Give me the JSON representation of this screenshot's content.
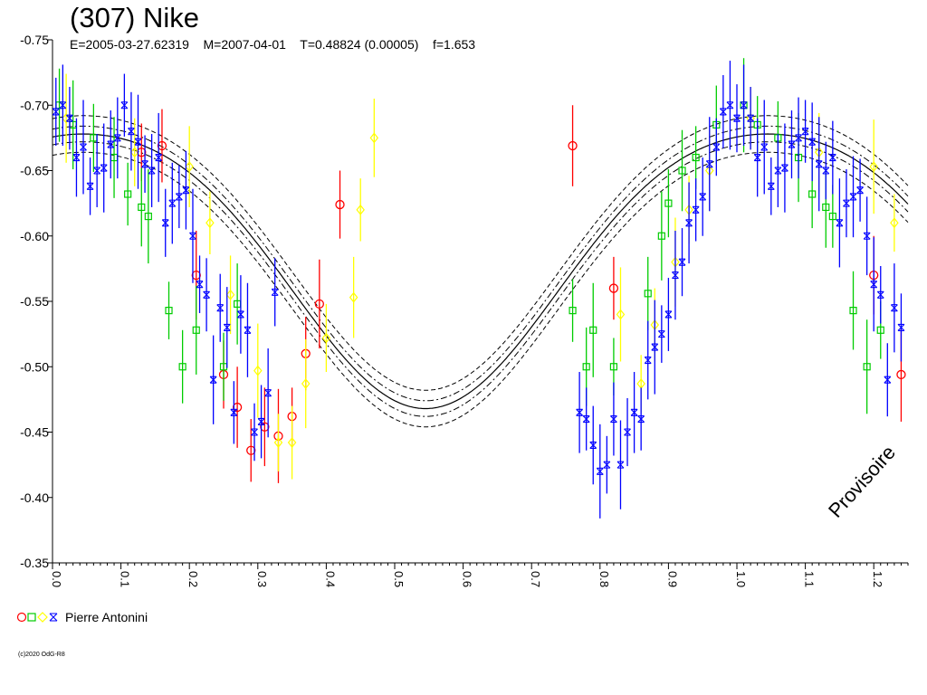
{
  "header": {
    "title": "(307) Nike",
    "subtitle": "E=2005-03-27.62319    M=2007-04-01    T=0.48824 (0.00005)    f=1.653"
  },
  "legend": {
    "label": "Pierre Antonini"
  },
  "footer": {
    "copyright": "(c)2020 OdG-R8"
  },
  "watermark": "Provisoire",
  "colors": {
    "red": "#ff0000",
    "green": "#00cc00",
    "yellow": "#ffff00",
    "blue": "#0000ff",
    "curve": "#000000"
  },
  "chart_data": {
    "type": "scatter",
    "xlim": [
      0,
      1.25
    ],
    "ylim": [
      -0.75,
      -0.35
    ],
    "y_ticks": [
      "-0.75",
      "-0.70",
      "-0.65",
      "-0.60",
      "-0.55",
      "-0.50",
      "-0.45",
      "-0.40",
      "-0.35"
    ],
    "x_ticks": [
      "0.0",
      "0.1",
      "0.2",
      "0.3",
      "0.4",
      "0.5",
      "0.6",
      "0.7",
      "0.8",
      "0.9",
      "1.0",
      "1.1",
      "1.2"
    ],
    "fit": {
      "mean": -0.585,
      "amp": 0.105,
      "peak_phase": 0.045,
      "harm2": 0.012,
      "band_inner": 0.006,
      "band_outer": 0.014
    },
    "series": [
      {
        "name": "Pierre Antonini",
        "color": "red",
        "marker": "circle",
        "points": [
          [
            0.13,
            -0.664
          ],
          [
            0.16,
            -0.669
          ],
          [
            0.21,
            -0.57
          ],
          [
            0.25,
            -0.494
          ],
          [
            0.27,
            -0.469
          ],
          [
            0.29,
            -0.436
          ],
          [
            0.31,
            -0.454
          ],
          [
            0.33,
            -0.447
          ],
          [
            0.35,
            -0.462
          ],
          [
            0.37,
            -0.51
          ],
          [
            0.39,
            -0.548
          ],
          [
            0.42,
            -0.624
          ],
          [
            0.76,
            -0.669
          ],
          [
            0.82,
            -0.56
          ],
          [
            1.2,
            -0.57
          ],
          [
            1.24,
            -0.494
          ]
        ]
      },
      {
        "name": "Pierre Antonini",
        "color": "green",
        "marker": "square",
        "points": [
          [
            0.01,
            -0.7
          ],
          [
            0.03,
            -0.685
          ],
          [
            0.06,
            -0.675
          ],
          [
            0.09,
            -0.66
          ],
          [
            0.11,
            -0.632
          ],
          [
            0.13,
            -0.622
          ],
          [
            0.14,
            -0.615
          ],
          [
            0.17,
            -0.543
          ],
          [
            0.19,
            -0.5
          ],
          [
            0.21,
            -0.528
          ],
          [
            0.25,
            -0.5
          ],
          [
            0.27,
            -0.548
          ],
          [
            0.76,
            -0.543
          ],
          [
            0.78,
            -0.5
          ],
          [
            0.79,
            -0.528
          ],
          [
            0.82,
            -0.5
          ],
          [
            0.87,
            -0.556
          ],
          [
            0.89,
            -0.6
          ],
          [
            0.9,
            -0.625
          ],
          [
            0.92,
            -0.65
          ],
          [
            0.94,
            -0.66
          ],
          [
            0.97,
            -0.685
          ],
          [
            1.01,
            -0.7
          ],
          [
            1.03,
            -0.685
          ],
          [
            1.06,
            -0.675
          ],
          [
            1.09,
            -0.66
          ],
          [
            1.11,
            -0.632
          ],
          [
            1.13,
            -0.622
          ],
          [
            1.14,
            -0.615
          ],
          [
            1.17,
            -0.543
          ],
          [
            1.19,
            -0.5
          ],
          [
            1.21,
            -0.528
          ]
        ]
      },
      {
        "name": "Pierre Antonini",
        "color": "yellow",
        "marker": "diamond",
        "points": [
          [
            0.02,
            -0.69
          ],
          [
            0.12,
            -0.664
          ],
          [
            0.2,
            -0.653
          ],
          [
            0.23,
            -0.61
          ],
          [
            0.26,
            -0.555
          ],
          [
            0.3,
            -0.497
          ],
          [
            0.33,
            -0.442
          ],
          [
            0.35,
            -0.442
          ],
          [
            0.37,
            -0.487
          ],
          [
            0.4,
            -0.522
          ],
          [
            0.44,
            -0.553
          ],
          [
            0.45,
            -0.62
          ],
          [
            0.47,
            -0.675
          ],
          [
            0.83,
            -0.54
          ],
          [
            0.86,
            -0.487
          ],
          [
            0.88,
            -0.532
          ],
          [
            0.91,
            -0.58
          ],
          [
            0.93,
            -0.62
          ],
          [
            0.96,
            -0.65
          ],
          [
            1.02,
            -0.69
          ],
          [
            1.12,
            -0.664
          ],
          [
            1.2,
            -0.653
          ],
          [
            1.23,
            -0.61
          ]
        ]
      },
      {
        "name": "Pierre Antonini",
        "color": "blue",
        "marker": "cross",
        "points": [
          [
            0.005,
            -0.695
          ],
          [
            0.015,
            -0.7
          ],
          [
            0.025,
            -0.69
          ],
          [
            0.035,
            -0.66
          ],
          [
            0.045,
            -0.668
          ],
          [
            0.055,
            -0.638
          ],
          [
            0.065,
            -0.65
          ],
          [
            0.075,
            -0.652
          ],
          [
            0.085,
            -0.67
          ],
          [
            0.095,
            -0.675
          ],
          [
            0.105,
            -0.7
          ],
          [
            0.115,
            -0.68
          ],
          [
            0.125,
            -0.672
          ],
          [
            0.135,
            -0.655
          ],
          [
            0.145,
            -0.65
          ],
          [
            0.155,
            -0.66
          ],
          [
            0.165,
            -0.61
          ],
          [
            0.175,
            -0.625
          ],
          [
            0.185,
            -0.63
          ],
          [
            0.195,
            -0.635
          ],
          [
            0.205,
            -0.6
          ],
          [
            0.215,
            -0.563
          ],
          [
            0.225,
            -0.555
          ],
          [
            0.235,
            -0.49
          ],
          [
            0.245,
            -0.545
          ],
          [
            0.255,
            -0.53
          ],
          [
            0.265,
            -0.465
          ],
          [
            0.275,
            -0.54
          ],
          [
            0.285,
            -0.528
          ],
          [
            0.295,
            -0.45
          ],
          [
            0.305,
            -0.458
          ],
          [
            0.315,
            -0.48
          ],
          [
            0.325,
            -0.557
          ],
          [
            0.77,
            -0.465
          ],
          [
            0.78,
            -0.46
          ],
          [
            0.79,
            -0.44
          ],
          [
            0.8,
            -0.42
          ],
          [
            0.81,
            -0.425
          ],
          [
            0.82,
            -0.46
          ],
          [
            0.83,
            -0.425
          ],
          [
            0.84,
            -0.45
          ],
          [
            0.85,
            -0.465
          ],
          [
            0.86,
            -0.46
          ],
          [
            0.87,
            -0.505
          ],
          [
            0.88,
            -0.515
          ],
          [
            0.89,
            -0.525
          ],
          [
            0.9,
            -0.54
          ],
          [
            0.91,
            -0.57
          ],
          [
            0.92,
            -0.58
          ],
          [
            0.93,
            -0.61
          ],
          [
            0.94,
            -0.62
          ],
          [
            0.95,
            -0.63
          ],
          [
            0.96,
            -0.655
          ],
          [
            0.97,
            -0.668
          ],
          [
            0.98,
            -0.695
          ],
          [
            0.99,
            -0.7
          ],
          [
            1.0,
            -0.69
          ],
          [
            1.01,
            -0.7
          ],
          [
            1.02,
            -0.69
          ],
          [
            1.03,
            -0.66
          ],
          [
            1.04,
            -0.668
          ],
          [
            1.05,
            -0.638
          ],
          [
            1.06,
            -0.65
          ],
          [
            1.07,
            -0.652
          ],
          [
            1.08,
            -0.67
          ],
          [
            1.09,
            -0.675
          ],
          [
            1.1,
            -0.68
          ],
          [
            1.11,
            -0.672
          ],
          [
            1.12,
            -0.655
          ],
          [
            1.13,
            -0.65
          ],
          [
            1.14,
            -0.66
          ],
          [
            1.15,
            -0.61
          ],
          [
            1.16,
            -0.625
          ],
          [
            1.17,
            -0.63
          ],
          [
            1.18,
            -0.635
          ],
          [
            1.19,
            -0.6
          ],
          [
            1.2,
            -0.563
          ],
          [
            1.21,
            -0.555
          ],
          [
            1.22,
            -0.49
          ],
          [
            1.23,
            -0.545
          ],
          [
            1.24,
            -0.53
          ]
        ]
      }
    ]
  }
}
